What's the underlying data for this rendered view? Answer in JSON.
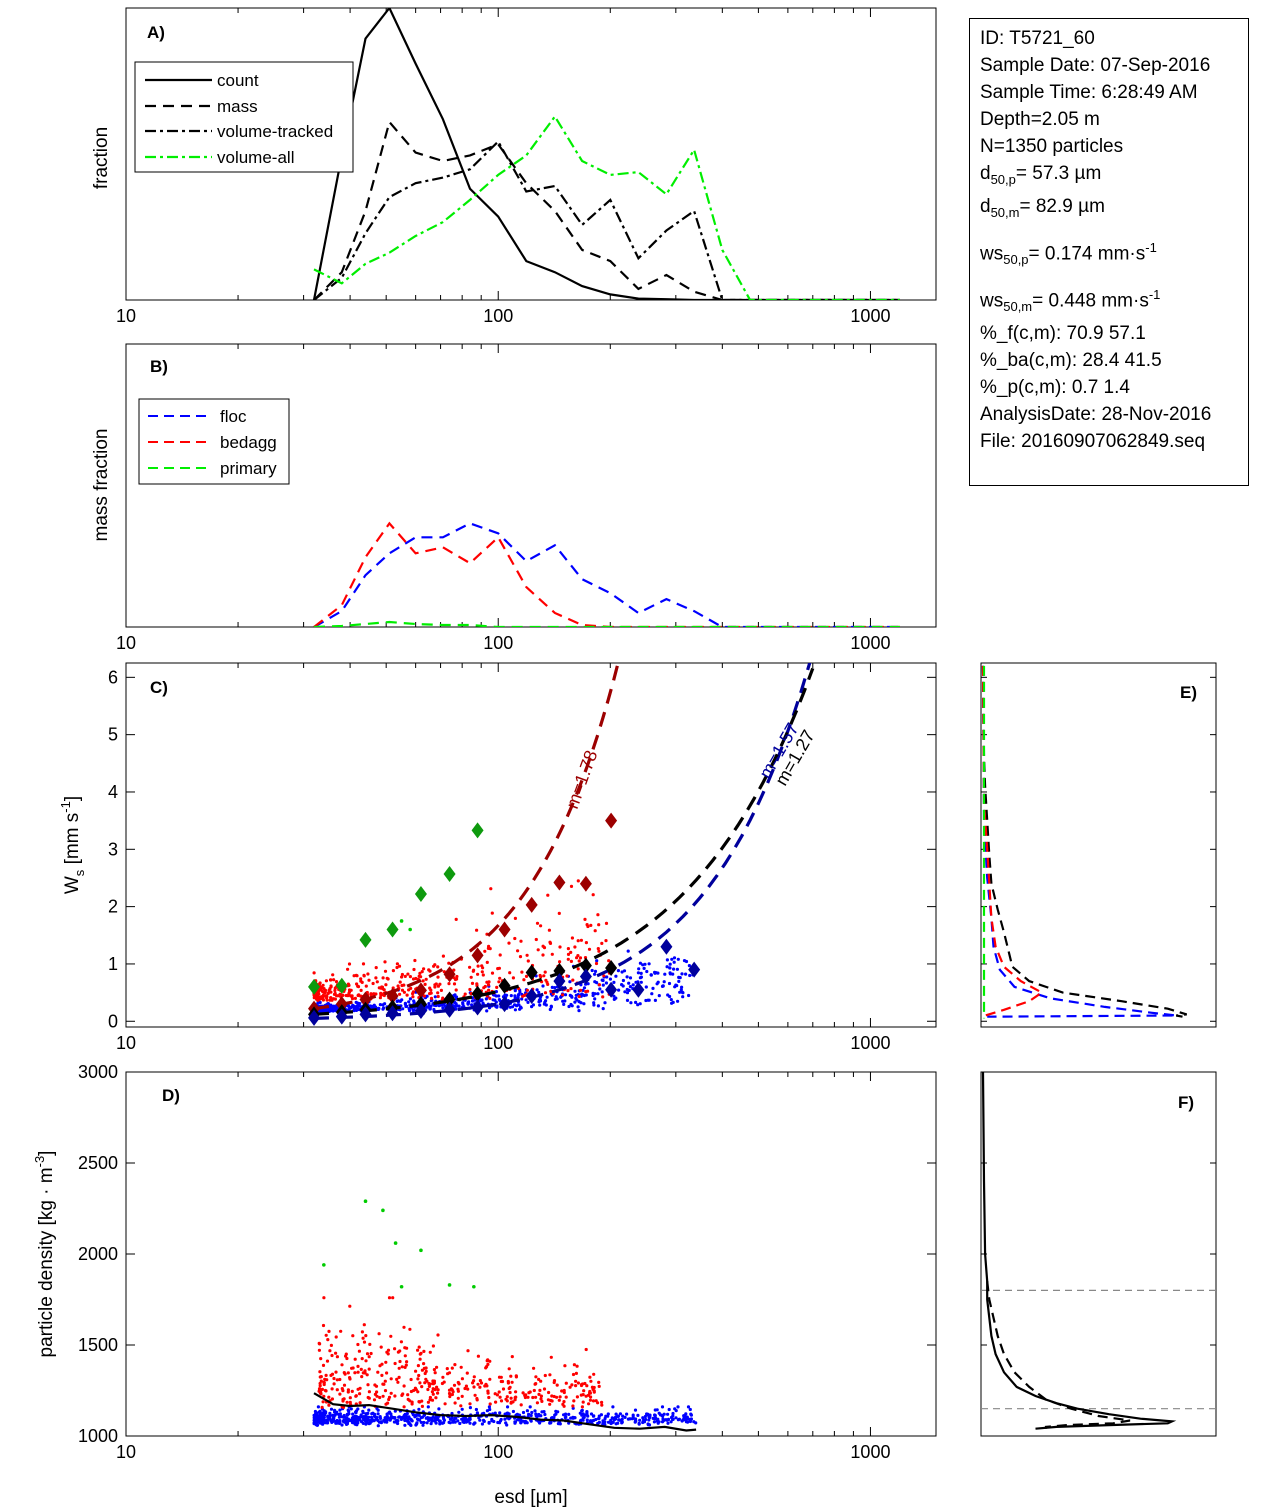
{
  "info": {
    "id": "ID: T5721_60",
    "date": "Sample Date: 07-Sep-2016",
    "time": "Sample Time:  6:28:49 AM",
    "depth": "Depth=2.05 m",
    "n": "N=1350 particles",
    "d50p_base": "d",
    "d50p_sub": "50,p",
    "d50p_val": "=  57.3 µm",
    "d50m_base": "d",
    "d50m_sub": "50,m",
    "d50m_val": "=  82.9 µm",
    "ws50p_base": "ws",
    "ws50p_sub": "50,p",
    "ws50p_val": "= 0.174 mm·s",
    "ws50p_sup": "-1",
    "ws50m_base": "ws",
    "ws50m_sub": "50,m",
    "ws50m_val": "= 0.448 mm·s",
    "ws50m_sup": "-1",
    "pf": "%_f(c,m): 70.9 57.1",
    "pba": "%_ba(c,m): 28.4 41.5",
    "pp": "%_p(c,m): 0.7 1.4",
    "analysis": "AnalysisDate: 28-Nov-2016",
    "file": "File: 20160907062849.seq"
  },
  "colors": {
    "floc": "#0000ff",
    "bedagg": "#ff0000",
    "primary": "#00cc00",
    "volume_all": "#00ee00",
    "floc_fit": "#00009c",
    "bedagg_fit": "#9c0000",
    "primary_marker": "#0e9a0e"
  },
  "chart_data": [
    {
      "id": "A",
      "type": "line",
      "panel_label": "A)",
      "ylabel": "fraction",
      "xscale": "log",
      "xlim": [
        10,
        1500
      ],
      "x_ticks": [
        10,
        100,
        1000
      ],
      "x_tick_labels": [
        "10",
        "100",
        "1000"
      ],
      "ylim": [
        0,
        0.105
      ],
      "legend": "top-left",
      "series": [
        {
          "name": "count",
          "style": "solid",
          "color": "#000000",
          "x": [
            32,
            38,
            44,
            51,
            60,
            71,
            84,
            100,
            119,
            142,
            168,
            200,
            238,
            283,
            336,
            400,
            475,
            565,
            672,
            800,
            950,
            1130,
            1200
          ],
          "y": [
            0,
            0.052,
            0.094,
            0.105,
            0.085,
            0.065,
            0.04,
            0.03,
            0.014,
            0.01,
            0.005,
            0.002,
            0.0005,
            0.0003,
            0,
            0,
            0,
            0,
            0,
            0,
            0,
            0,
            0
          ]
        },
        {
          "name": "mass",
          "style": "dashed",
          "color": "#000000",
          "x": [
            32,
            38,
            44,
            51,
            60,
            71,
            84,
            100,
            119,
            142,
            168,
            200,
            238,
            283,
            336,
            400,
            475,
            565,
            672,
            800,
            950,
            1130,
            1200
          ],
          "y": [
            0,
            0.01,
            0.032,
            0.064,
            0.053,
            0.05,
            0.052,
            0.056,
            0.042,
            0.032,
            0.018,
            0.014,
            0.004,
            0.009,
            0.003,
            0,
            0,
            0,
            0,
            0,
            0,
            0,
            0
          ]
        },
        {
          "name": "volume-tracked",
          "style": "dashdot",
          "color": "#000000",
          "x": [
            32,
            38,
            44,
            51,
            60,
            71,
            84,
            100,
            119,
            142,
            168,
            200,
            238,
            283,
            336,
            400,
            475,
            565,
            672,
            800,
            950,
            1130,
            1200
          ],
          "y": [
            0,
            0.008,
            0.024,
            0.037,
            0.042,
            0.044,
            0.047,
            0.057,
            0.039,
            0.041,
            0.027,
            0.036,
            0.015,
            0.025,
            0.032,
            0,
            0,
            0,
            0,
            0,
            0,
            0,
            0
          ]
        },
        {
          "name": "volume-all",
          "style": "dashdot",
          "color": "#00ee00",
          "x": [
            32,
            38,
            44,
            51,
            60,
            71,
            84,
            100,
            119,
            142,
            168,
            200,
            238,
            283,
            336,
            400,
            475,
            565,
            672,
            800,
            950,
            1130,
            1200
          ],
          "y": [
            0.011,
            0.006,
            0.013,
            0.017,
            0.023,
            0.028,
            0.036,
            0.045,
            0.052,
            0.066,
            0.05,
            0.045,
            0.046,
            0.038,
            0.054,
            0.018,
            0,
            0,
            0,
            0,
            0,
            0,
            0
          ]
        }
      ]
    },
    {
      "id": "B",
      "type": "line",
      "panel_label": "B)",
      "ylabel": "mass fraction",
      "xscale": "log",
      "xlim": [
        10,
        1500
      ],
      "x_ticks": [
        10,
        100,
        1000
      ],
      "x_tick_labels": [
        "10",
        "100",
        "1000"
      ],
      "ylim": [
        0,
        0.142
      ],
      "legend": "top-left",
      "series": [
        {
          "name": "floc",
          "style": "dashed",
          "color": "#0000ff",
          "x": [
            32,
            38,
            44,
            51,
            60,
            71,
            84,
            100,
            119,
            142,
            168,
            200,
            238,
            283,
            336,
            400,
            475,
            565,
            672,
            800,
            950,
            1130,
            1200
          ],
          "y": [
            0,
            0.008,
            0.026,
            0.037,
            0.045,
            0.045,
            0.052,
            0.047,
            0.033,
            0.041,
            0.024,
            0.017,
            0.007,
            0.014,
            0.008,
            0,
            0,
            0,
            0,
            0,
            0,
            0,
            0
          ]
        },
        {
          "name": "bedagg",
          "style": "dashed",
          "color": "#ff0000",
          "x": [
            32,
            38,
            44,
            51,
            60,
            71,
            84,
            100,
            119,
            142,
            168,
            200,
            238,
            283,
            336,
            400,
            475,
            565,
            672,
            800,
            950,
            1130,
            1200
          ],
          "y": [
            0,
            0.011,
            0.035,
            0.052,
            0.037,
            0.04,
            0.032,
            0.045,
            0.02,
            0.007,
            0.001,
            0,
            0,
            0,
            0,
            0,
            0,
            0,
            0,
            0,
            0,
            0,
            0
          ]
        },
        {
          "name": "primary",
          "style": "dashed",
          "color": "#00ee00",
          "x": [
            32,
            38,
            44,
            51,
            60,
            71,
            84,
            100,
            119,
            142,
            168,
            200,
            238,
            283,
            336,
            400,
            475,
            565,
            672,
            800,
            950,
            1130,
            1200
          ],
          "y": [
            0,
            0.0005,
            0.0015,
            0.0025,
            0.0015,
            0.001,
            0.001,
            0,
            0,
            0,
            0,
            0,
            0,
            0,
            0,
            0,
            0,
            0,
            0,
            0,
            0,
            0,
            0
          ]
        }
      ]
    },
    {
      "id": "C",
      "type": "scatter",
      "panel_label": "C)",
      "ylabel": "W",
      "ylabel_sub": "s",
      "ylabel_rest": " [mm s",
      "ylabel_sup": "-1",
      "ylabel_end": "]",
      "xscale": "log",
      "xlim": [
        10,
        1500
      ],
      "x_ticks": [
        10,
        100,
        1000
      ],
      "x_tick_labels": [
        "10",
        "100",
        "1000"
      ],
      "ylim": [
        -0.1,
        6.25
      ],
      "y_ticks": [
        0,
        1,
        2,
        3,
        4,
        5,
        6
      ],
      "y_tick_labels": [
        "0",
        "1",
        "2",
        "3",
        "4",
        "5",
        "6"
      ],
      "floc_points": {
        "xmin": 32,
        "xmax": 340,
        "ycenter": 0.17,
        "yslope": 0.7,
        "count": 700
      },
      "bedagg_points": {
        "xmin": 32,
        "xmax": 200,
        "ycenter": 0.35,
        "yslope": 1.25,
        "count": 430
      },
      "primary_points": {
        "x": [
          52,
          55,
          58
        ],
        "y": [
          1.65,
          1.75,
          1.6
        ]
      },
      "fits": [
        {
          "name": "bedagg",
          "label": "m=1.78",
          "color": "#9c0000",
          "a": 0.00046,
          "b": 1.78,
          "xmin": 32,
          "xmax": 225
        },
        {
          "name": "floc",
          "label": "m=1.57",
          "color": "#00009c",
          "a": 0.00022,
          "b": 1.57,
          "xmin": 32,
          "xmax": 720
        },
        {
          "name": "all",
          "label": "m=1.27",
          "color": "#000000",
          "a": 0.0015,
          "b": 1.27,
          "xmin": 32,
          "xmax": 700
        }
      ],
      "markers": [
        {
          "name": "primary",
          "color": "#0e9a0e",
          "x": [
            32,
            38,
            44,
            52,
            62,
            74,
            88
          ],
          "y": [
            0.6,
            0.62,
            1.42,
            1.6,
            2.22,
            2.57,
            3.33
          ]
        },
        {
          "name": "bedagg",
          "color": "#9c0000",
          "x": [
            32,
            38,
            44,
            52,
            62,
            74,
            88,
            104,
            123,
            146,
            172,
            201
          ],
          "y": [
            0.22,
            0.3,
            0.38,
            0.44,
            0.54,
            0.82,
            1.15,
            1.6,
            2.03,
            2.42,
            2.4,
            3.5
          ]
        },
        {
          "name": "all",
          "color": "#000000",
          "x": [
            32,
            38,
            44,
            52,
            62,
            74,
            88,
            104,
            123,
            146,
            172,
            201
          ],
          "y": [
            0.12,
            0.16,
            0.2,
            0.24,
            0.3,
            0.38,
            0.48,
            0.62,
            0.85,
            0.88,
            0.97,
            0.93
          ]
        },
        {
          "name": "floc",
          "color": "#00009c",
          "x": [
            32,
            38,
            44,
            52,
            62,
            74,
            88,
            104,
            123,
            146,
            172,
            201,
            238,
            283,
            336
          ],
          "y": [
            0.06,
            0.08,
            0.12,
            0.14,
            0.18,
            0.2,
            0.24,
            0.3,
            0.44,
            0.7,
            0.78,
            0.55,
            0.55,
            1.3,
            0.9
          ]
        }
      ]
    },
    {
      "id": "D",
      "type": "scatter",
      "panel_label": "D)",
      "xlabel": "esd [µm]",
      "ylabel": "particle density [kg · m",
      "ylabel_sup": "-3",
      "ylabel_end": "]",
      "xscale": "log",
      "xlim": [
        10,
        1500
      ],
      "x_ticks": [
        10,
        100,
        1000
      ],
      "x_tick_labels": [
        "10",
        "100",
        "1000"
      ],
      "ylim": [
        1000,
        3000
      ],
      "y_ticks": [
        1000,
        1500,
        2000,
        2500,
        3000
      ],
      "y_tick_labels": [
        "1000",
        "1500",
        "2000",
        "2500",
        "3000"
      ],
      "floc_points": {
        "xmin": 32,
        "xmax": 340,
        "ymin": 1030,
        "ymax": 1160,
        "count": 700
      },
      "bedagg_points": {
        "xmin": 33,
        "xmax": 190,
        "ymin": 1150,
        "ymax": 1760,
        "count": 430
      },
      "primary_points": {
        "x": [
          34,
          44,
          49,
          53,
          55,
          62,
          74,
          86
        ],
        "y": [
          1940,
          2290,
          2240,
          2060,
          1820,
          2020,
          1830,
          1820
        ]
      },
      "median_line": {
        "x": [
          32,
          36,
          40,
          45,
          52,
          60,
          70,
          82,
          96,
          112,
          130,
          150,
          175,
          205,
          240,
          280,
          320,
          340
        ],
        "y": [
          1235,
          1175,
          1165,
          1170,
          1150,
          1130,
          1115,
          1110,
          1115,
          1105,
          1090,
          1085,
          1065,
          1045,
          1040,
          1050,
          1030,
          1035
        ]
      }
    },
    {
      "id": "E",
      "type": "line",
      "panel_label": "E)",
      "ylim": [
        -0.1,
        6.25
      ],
      "series": [
        {
          "name": "all",
          "color": "#000000",
          "y": [
            6.2,
            4.6,
            4.1,
            3.5,
            2.9,
            2.4,
            1.95,
            1.55,
            1.25,
            0.95,
            0.7,
            0.5,
            0.35,
            0.22,
            0.12,
            0.1,
            0.08
          ],
          "v": [
            0.0,
            0.005,
            0.01,
            0.02,
            0.03,
            0.04,
            0.07,
            0.1,
            0.12,
            0.14,
            0.22,
            0.38,
            0.66,
            0.88,
            0.97,
            0.92,
            0.95
          ]
        },
        {
          "name": "floc",
          "color": "#0000ff",
          "y": [
            6.2,
            3.5,
            2.5,
            1.8,
            1.3,
            0.9,
            0.6,
            0.4,
            0.25,
            0.15,
            0.1,
            0.08
          ],
          "v": [
            0.0,
            0.005,
            0.02,
            0.04,
            0.05,
            0.08,
            0.15,
            0.32,
            0.58,
            0.8,
            0.92,
            0.02
          ]
        },
        {
          "name": "bedagg",
          "color": "#ff0000",
          "y": [
            6.2,
            3.8,
            3.0,
            2.4,
            1.8,
            1.3,
            0.95,
            0.7,
            0.5,
            0.35,
            0.2,
            0.1
          ],
          "v": [
            0.0,
            0.005,
            0.02,
            0.03,
            0.04,
            0.06,
            0.1,
            0.18,
            0.28,
            0.22,
            0.1,
            0.01
          ]
        },
        {
          "name": "primary",
          "color": "#00ee00",
          "y": [
            6.2,
            0.05
          ],
          "v": [
            0.005,
            0.005
          ]
        }
      ]
    },
    {
      "id": "F",
      "type": "line",
      "panel_label": "F)",
      "ylim": [
        1000,
        3000
      ],
      "ref_lines": [
        1800,
        1150
      ],
      "series": [
        {
          "name": "solid",
          "style": "solid",
          "color": "#000000",
          "y": [
            3000,
            2400,
            2000,
            1850,
            1750,
            1650,
            1550,
            1450,
            1350,
            1270,
            1220,
            1180,
            1150,
            1120,
            1095,
            1080,
            1070,
            1060,
            1050,
            1040
          ],
          "v": [
            0.0,
            0.005,
            0.01,
            0.02,
            0.02,
            0.03,
            0.04,
            0.06,
            0.1,
            0.16,
            0.25,
            0.35,
            0.45,
            0.6,
            0.75,
            0.9,
            0.88,
            0.6,
            0.35,
            0.25
          ]
        },
        {
          "name": "dashed",
          "style": "dashed",
          "color": "#000000",
          "y": [
            1850,
            1750,
            1650,
            1550,
            1450,
            1350,
            1270,
            1200,
            1150,
            1110,
            1085,
            1070,
            1060,
            1050,
            1040
          ],
          "v": [
            0.02,
            0.03,
            0.05,
            0.07,
            0.1,
            0.15,
            0.22,
            0.3,
            0.42,
            0.55,
            0.7,
            0.62,
            0.4,
            0.3,
            0.3
          ]
        }
      ]
    }
  ]
}
